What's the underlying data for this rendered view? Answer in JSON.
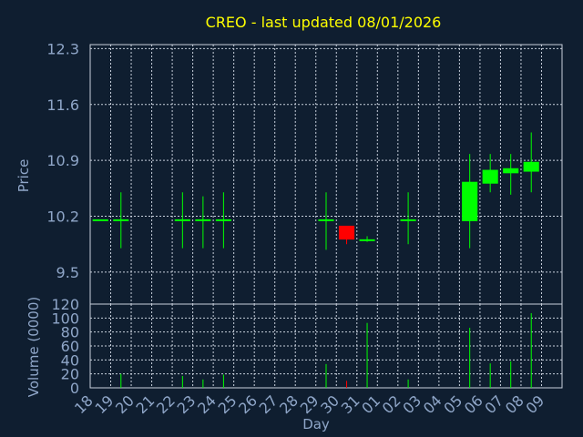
{
  "chart_data": {
    "type": "candlestick",
    "title": "CREO - last updated 08/01/2026",
    "xlabel": "Day",
    "price_panel": {
      "ylabel": "Price",
      "ylim": [
        9.1,
        12.35
      ],
      "yticks": [
        9.5,
        10.2,
        10.9,
        11.6,
        12.3
      ],
      "ytick_labels": [
        "9.5",
        "10.2",
        "10.9",
        "11.6",
        "12.3"
      ]
    },
    "volume_panel": {
      "ylabel": "Volume (0000)",
      "ylim": [
        0,
        120
      ],
      "yticks": [
        0,
        20,
        40,
        60,
        80,
        100,
        120
      ],
      "ytick_labels": [
        "0",
        "20",
        "40",
        "60",
        "80",
        "100",
        "120"
      ]
    },
    "x_tick_labels": [
      "18",
      "19",
      "20",
      "21",
      "22",
      "23",
      "24",
      "25",
      "26",
      "27",
      "28",
      "29",
      "30",
      "31",
      "01",
      "02",
      "03",
      "04",
      "05",
      "06",
      "07",
      "08",
      "09"
    ],
    "candles": [
      {
        "day": "18",
        "open": 10.15,
        "high": 10.15,
        "low": 10.15,
        "close": 10.15,
        "volume": 0
      },
      {
        "day": "19",
        "open": 10.15,
        "high": 10.5,
        "low": 9.8,
        "close": 10.15,
        "volume": 20
      },
      {
        "day": "22",
        "open": 10.15,
        "high": 10.5,
        "low": 9.8,
        "close": 10.15,
        "volume": 17
      },
      {
        "day": "23",
        "open": 10.15,
        "high": 10.45,
        "low": 9.8,
        "close": 10.15,
        "volume": 12
      },
      {
        "day": "24",
        "open": 10.15,
        "high": 10.5,
        "low": 9.8,
        "close": 10.15,
        "volume": 19
      },
      {
        "day": "29",
        "open": 10.15,
        "high": 10.5,
        "low": 9.78,
        "close": 10.15,
        "volume": 34
      },
      {
        "day": "30",
        "open": 10.07,
        "high": 10.07,
        "low": 9.85,
        "close": 9.92,
        "volume": 10
      },
      {
        "day": "31",
        "open": 9.9,
        "high": 9.95,
        "low": 9.88,
        "close": 9.9,
        "volume": 93
      },
      {
        "day": "02",
        "open": 10.15,
        "high": 10.5,
        "low": 9.85,
        "close": 10.15,
        "volume": 12
      },
      {
        "day": "05",
        "open": 10.15,
        "high": 10.98,
        "low": 9.8,
        "close": 10.62,
        "volume": 86
      },
      {
        "day": "06",
        "open": 10.62,
        "high": 10.98,
        "low": 10.5,
        "close": 10.77,
        "volume": 35
      },
      {
        "day": "07",
        "open": 10.75,
        "high": 10.98,
        "low": 10.47,
        "close": 10.79,
        "volume": 38
      },
      {
        "day": "08",
        "open": 10.77,
        "high": 11.25,
        "low": 10.5,
        "close": 10.87,
        "volume": 107
      }
    ],
    "colors": {
      "up": "#00ff00",
      "down": "#ff0000",
      "background": "#0f1e30",
      "title": "#ffff00",
      "axis_text": "#8fa6c8",
      "grid": "#c8d0dc"
    },
    "grid": true
  }
}
